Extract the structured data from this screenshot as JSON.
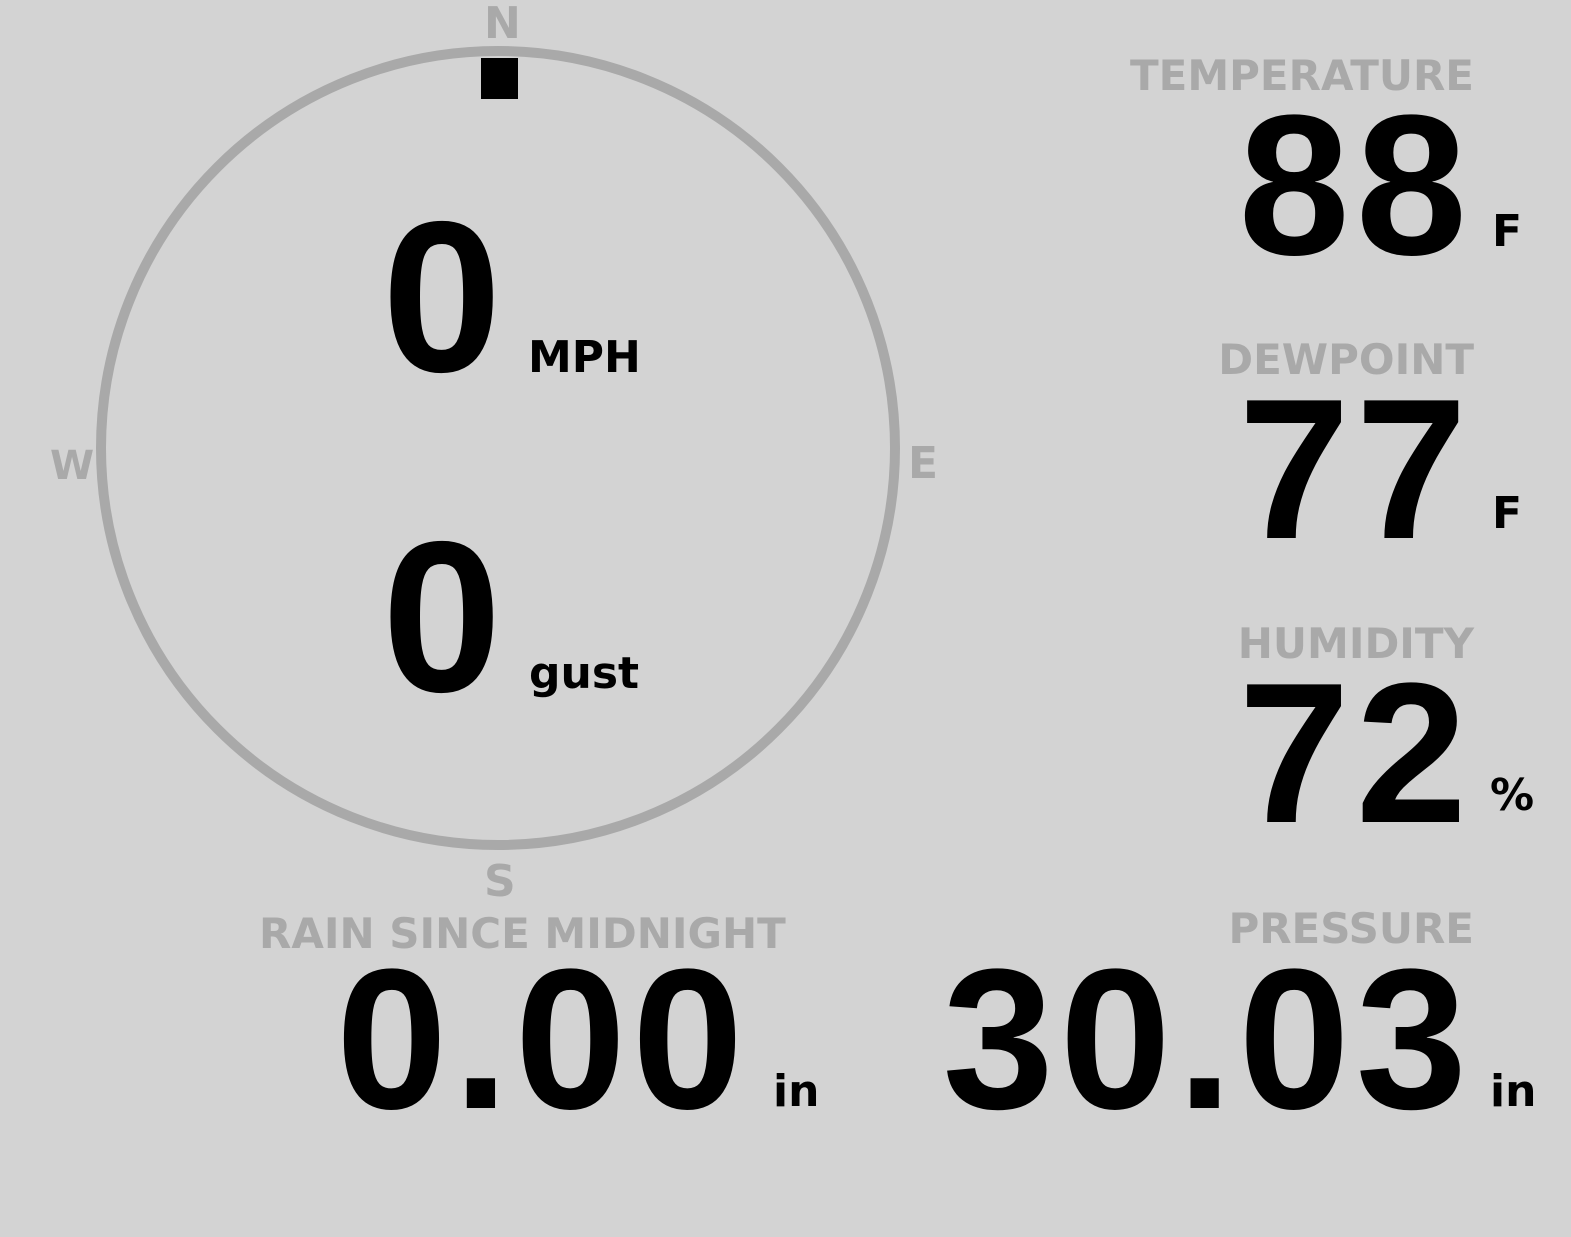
{
  "wind": {
    "compass": {
      "north": "N",
      "east": "E",
      "south": "S",
      "west": "W"
    },
    "direction_degrees": 0,
    "speed": "0",
    "speed_unit": "MPH",
    "gust": "0",
    "gust_unit": "gust"
  },
  "temperature": {
    "label": "TEMPERATURE",
    "value": "88",
    "unit": "F"
  },
  "dewpoint": {
    "label": "DEWPOINT",
    "value": "77",
    "unit": "F"
  },
  "humidity": {
    "label": "HUMIDITY",
    "value": "72",
    "unit": "%"
  },
  "rain": {
    "label": "RAIN SINCE MIDNIGHT",
    "value": "0.00",
    "unit": "in"
  },
  "pressure": {
    "label": "PRESSURE",
    "value": "30.03",
    "unit": "in"
  },
  "colors": {
    "background": "#d3d3d3",
    "muted": "#a9a9a9",
    "value": "#000000"
  }
}
